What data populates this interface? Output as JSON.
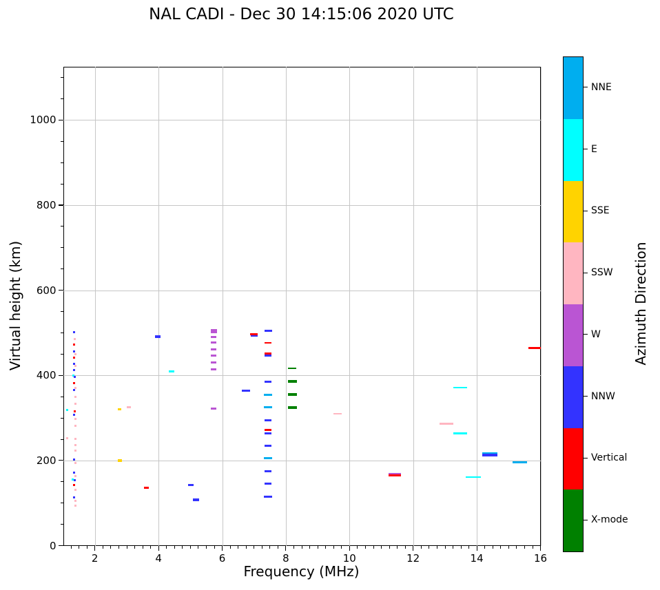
{
  "figure": {
    "title": "NAL CADI - Dec 30 14:15:06 2020 UTC"
  },
  "chart_data": {
    "type": "scatter",
    "title": "NAL CADI - Dec 30 14:15:06 2020 UTC",
    "xlabel": "Frequency (MHz)",
    "ylabel": "Virtual height (km)",
    "xlim": [
      1,
      16
    ],
    "ylim": [
      0,
      1125
    ],
    "xticks": [
      2,
      4,
      6,
      8,
      10,
      12,
      14,
      16
    ],
    "yticks": [
      0,
      200,
      400,
      600,
      800,
      1000
    ],
    "x_minor_step": 0.25,
    "y_minor_step": 50,
    "grid": true,
    "legend_position": "right-colorbar",
    "colorbar": {
      "label": "Azimuth Direction",
      "categories_top_to_bottom": [
        "NNE",
        "E",
        "SSE",
        "SSW",
        "W",
        "NNW",
        "Vertical",
        "X-mode"
      ]
    },
    "point_format": [
      "freq_mhz",
      "virtual_height_km",
      "marker_px_w",
      "marker_px_h"
    ],
    "series": [
      {
        "name": "NNE",
        "color": "#00AEEF",
        "points": [
          [
            7.45,
            355,
            12,
            3
          ],
          [
            7.45,
            325,
            12,
            3
          ],
          [
            7.45,
            205,
            12,
            3
          ],
          [
            14.4,
            217,
            22,
            2
          ],
          [
            15.35,
            195,
            21,
            3
          ]
        ]
      },
      {
        "name": "E",
        "color": "#00FFFF",
        "points": [
          [
            1.33,
            400,
            3,
            3
          ],
          [
            1.14,
            318,
            3,
            3
          ],
          [
            1.31,
            156,
            3,
            3
          ],
          [
            4.4,
            409,
            8,
            3
          ],
          [
            13.48,
            372,
            20,
            2
          ],
          [
            13.48,
            263,
            20,
            3
          ],
          [
            13.9,
            161,
            22,
            2
          ]
        ]
      },
      {
        "name": "SSE",
        "color": "#FFD300",
        "points": [
          [
            2.78,
            200,
            6,
            4
          ],
          [
            2.78,
            321,
            5,
            3
          ]
        ]
      },
      {
        "name": "SSW",
        "color": "#FFB6C1",
        "points": [
          [
            1.37,
            485,
            3,
            3
          ],
          [
            1.38,
            449,
            3,
            3
          ],
          [
            1.39,
            422,
            3,
            3
          ],
          [
            1.39,
            370,
            3,
            3
          ],
          [
            1.39,
            349,
            3,
            3
          ],
          [
            1.39,
            334,
            3,
            3
          ],
          [
            1.39,
            297,
            3,
            3
          ],
          [
            1.39,
            281,
            3,
            3
          ],
          [
            1.12,
            252,
            3,
            3
          ],
          [
            1.39,
            251,
            3,
            3
          ],
          [
            1.4,
            236,
            3,
            3
          ],
          [
            1.4,
            224,
            3,
            3
          ],
          [
            1.4,
            194,
            3,
            3
          ],
          [
            1.4,
            163,
            3,
            3
          ],
          [
            1.4,
            131,
            3,
            3
          ],
          [
            1.4,
            105,
            3,
            3
          ],
          [
            1.4,
            94,
            3,
            3
          ],
          [
            3.06,
            325,
            6,
            3
          ],
          [
            9.63,
            310,
            12,
            2
          ],
          [
            13.05,
            286,
            20,
            3
          ]
        ]
      },
      {
        "name": "W",
        "color": "#BA55D3",
        "points": [
          [
            5.73,
            504,
            9,
            6
          ],
          [
            5.73,
            490,
            8,
            3
          ],
          [
            5.73,
            477,
            8,
            3
          ],
          [
            5.73,
            461,
            8,
            3
          ],
          [
            5.73,
            446,
            8,
            3
          ],
          [
            5.73,
            430,
            8,
            3
          ],
          [
            5.73,
            414,
            8,
            3
          ],
          [
            5.73,
            322,
            8,
            3
          ],
          [
            11.43,
            168,
            18,
            3
          ]
        ]
      },
      {
        "name": "NNW",
        "color": "#3333FF",
        "points": [
          [
            1.35,
            502,
            3,
            3
          ],
          [
            1.35,
            456,
            3,
            3
          ],
          [
            1.35,
            427,
            3,
            3
          ],
          [
            1.35,
            412,
            3,
            3
          ],
          [
            1.36,
            397,
            3,
            3
          ],
          [
            1.35,
            365,
            3,
            3
          ],
          [
            1.35,
            307,
            3,
            3
          ],
          [
            1.35,
            202,
            3,
            3
          ],
          [
            1.35,
            171,
            3,
            3
          ],
          [
            1.36,
            154,
            3,
            3
          ],
          [
            1.35,
            113,
            3,
            3
          ],
          [
            3.98,
            491,
            8,
            4
          ],
          [
            5.02,
            142,
            8,
            3
          ],
          [
            5.17,
            108,
            9,
            4
          ],
          [
            6.75,
            364,
            12,
            3
          ],
          [
            7.01,
            493,
            10,
            2
          ],
          [
            7.45,
            505,
            11,
            3
          ],
          [
            7.45,
            446,
            10,
            3
          ],
          [
            7.45,
            385,
            10,
            3
          ],
          [
            7.45,
            294,
            10,
            3
          ],
          [
            7.45,
            264,
            10,
            3
          ],
          [
            7.45,
            235,
            10,
            3
          ],
          [
            7.45,
            175,
            10,
            3
          ],
          [
            7.45,
            145,
            10,
            3
          ],
          [
            7.45,
            115,
            12,
            3
          ],
          [
            14.4,
            213,
            22,
            4
          ]
        ]
      },
      {
        "name": "Vertical",
        "color": "#FF0000",
        "points": [
          [
            1.35,
            472,
            3,
            3
          ],
          [
            1.35,
            441,
            3,
            3
          ],
          [
            1.35,
            382,
            3,
            3
          ],
          [
            1.36,
            316,
            3,
            3
          ],
          [
            1.35,
            142,
            3,
            3
          ],
          [
            3.62,
            136,
            7,
            3
          ],
          [
            7.0,
            497,
            11,
            3
          ],
          [
            7.45,
            476,
            10,
            2
          ],
          [
            7.45,
            452,
            10,
            3
          ],
          [
            7.45,
            271,
            10,
            3
          ],
          [
            11.43,
            165,
            18,
            3
          ],
          [
            15.82,
            465,
            18,
            3
          ]
        ]
      },
      {
        "name": "X-mode",
        "color": "#008000",
        "points": [
          [
            8.2,
            416,
            12,
            2
          ],
          [
            8.2,
            386,
            13,
            4
          ],
          [
            8.2,
            355,
            13,
            4
          ],
          [
            8.2,
            325,
            13,
            4
          ]
        ]
      }
    ]
  }
}
